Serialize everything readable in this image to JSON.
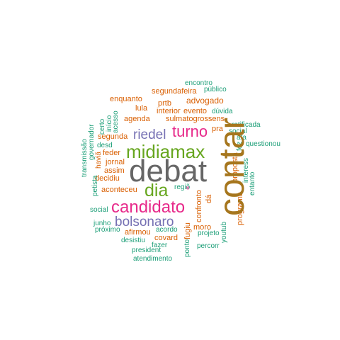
{
  "palette": {
    "teal": "#1b9e77",
    "orange": "#d95f02",
    "purple": "#7570b3",
    "pink": "#e7298a",
    "green": "#66a61e",
    "gold": "#a6761d",
    "gray": "#666666"
  },
  "words": [
    {
      "text": "debat",
      "color": "gray"
    },
    {
      "text": "contar",
      "color": "gold"
    },
    {
      "text": "midiamax",
      "color": "green"
    },
    {
      "text": "candidato",
      "color": "pink"
    },
    {
      "text": "dia",
      "color": "green"
    },
    {
      "text": "turno",
      "color": "pink"
    },
    {
      "text": "riedel",
      "color": "purple"
    },
    {
      "text": "bolsonaro",
      "color": "purple"
    },
    {
      "text": "encontro",
      "color": "teal"
    },
    {
      "text": "público",
      "color": "teal"
    },
    {
      "text": "ratificada",
      "color": "teal"
    },
    {
      "text": "segundafeira",
      "color": "orange"
    },
    {
      "text": "enquanto",
      "color": "orange"
    },
    {
      "text": "advogado",
      "color": "orange"
    },
    {
      "text": "prtb",
      "color": "orange"
    },
    {
      "text": "lula",
      "color": "orange"
    },
    {
      "text": "interior",
      "color": "orange"
    },
    {
      "text": "evento",
      "color": "orange"
    },
    {
      "text": "dúvida",
      "color": "teal"
    },
    {
      "text": "agenda",
      "color": "orange"
    },
    {
      "text": "sulmatogrossens",
      "color": "orange"
    },
    {
      "text": "pra",
      "color": "orange"
    },
    {
      "text": "social",
      "color": "teal"
    },
    {
      "text": "ata",
      "color": "teal"
    },
    {
      "text": "segunda",
      "color": "orange"
    },
    {
      "text": "desd",
      "color": "teal"
    },
    {
      "text": "feder",
      "color": "orange"
    },
    {
      "text": "jornal",
      "color": "orange"
    },
    {
      "text": "assim",
      "color": "orange"
    },
    {
      "text": "decidiu",
      "color": "orange"
    },
    {
      "text": "questionou",
      "color": "teal"
    },
    {
      "text": "aconteceu",
      "color": "orange"
    },
    {
      "text": "regiõ",
      "color": "teal"
    },
    {
      "text": "social",
      "color": "teal"
    },
    {
      "text": "junho",
      "color": "teal"
    },
    {
      "text": "próximo",
      "color": "teal"
    },
    {
      "text": "afirmou",
      "color": "orange"
    },
    {
      "text": "acordo",
      "color": "teal"
    },
    {
      "text": "covard",
      "color": "orange"
    },
    {
      "text": "desistiu",
      "color": "teal"
    },
    {
      "text": "fazer",
      "color": "teal"
    },
    {
      "text": "president",
      "color": "teal"
    },
    {
      "text": "atendimento",
      "color": "teal"
    },
    {
      "text": "moro",
      "color": "orange"
    },
    {
      "text": "projeto",
      "color": "teal"
    },
    {
      "text": "percorr",
      "color": "teal"
    },
    {
      "text": "certo",
      "color": "teal"
    },
    {
      "text": "início",
      "color": "teal"
    },
    {
      "text": "acesso",
      "color": "teal"
    },
    {
      "text": "governador",
      "color": "teal"
    },
    {
      "text": "transmissão",
      "color": "teal"
    },
    {
      "text": "haviã",
      "color": "orange"
    },
    {
      "text": "petista",
      "color": "teal"
    },
    {
      "text": "fez",
      "color": "teal"
    },
    {
      "text": "proposta",
      "color": "orange"
    },
    {
      "text": "interess",
      "color": "teal"
    },
    {
      "text": "entanto",
      "color": "teal"
    },
    {
      "text": "programa",
      "color": "orange"
    },
    {
      "text": "“",
      "color": "pink"
    },
    {
      "text": "confronto",
      "color": "orange"
    },
    {
      "text": "dá",
      "color": "orange"
    },
    {
      "text": "fugiu",
      "color": "orange"
    },
    {
      "text": "ponto",
      "color": "teal"
    },
    {
      "text": "youtub",
      "color": "teal"
    }
  ]
}
